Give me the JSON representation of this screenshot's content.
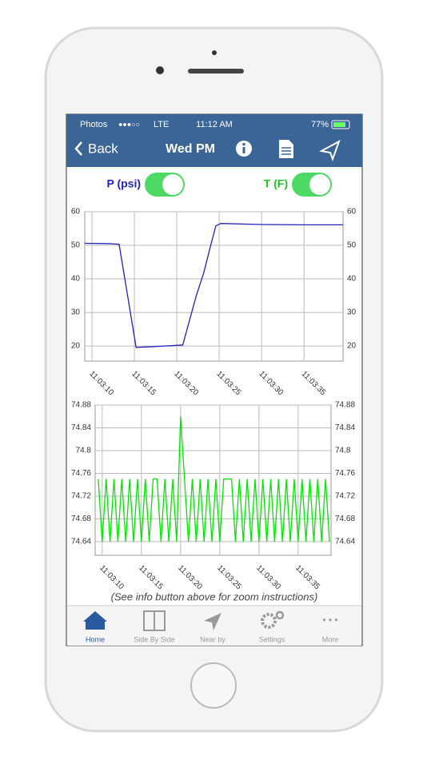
{
  "status_bar": {
    "back_app": "Photos",
    "signal": "●●●○○",
    "network": "LTE",
    "time": "11:12 AM",
    "battery": "77%"
  },
  "nav_bar": {
    "back": "Back",
    "title": "Wed PM"
  },
  "note": "(See info button above for zoom instructions)",
  "tabs": [
    "Home",
    "Side By Side",
    "Near by",
    "Settings",
    "More"
  ],
  "chart_data": [
    {
      "type": "line",
      "x": [
        9.15,
        12,
        13.2,
        14.2,
        15.2,
        17,
        18.5,
        20.7,
        22.3,
        23.2,
        24,
        24.6,
        25.2,
        30,
        35,
        39.6
      ],
      "series": [
        {
          "name": "P (psi)",
          "color": "#2222bb",
          "values": [
            50.6,
            50.5,
            50.3,
            35,
            19.6,
            19.8,
            20,
            20.3,
            35,
            42,
            50,
            55.8,
            56.5,
            56.2,
            56.1,
            56.1
          ]
        }
      ],
      "xlim": [
        9.15,
        39.6
      ],
      "ylim": [
        15.5,
        60
      ],
      "xticks": [
        {
          "value": 10,
          "label": "11:03:10"
        },
        {
          "value": 15,
          "label": "11:03:15"
        },
        {
          "value": 20,
          "label": "11:03:20"
        },
        {
          "value": 25,
          "label": "11:03:25"
        },
        {
          "value": 30,
          "label": "11:03:30"
        },
        {
          "value": 35,
          "label": "11:03:35"
        }
      ],
      "yticks": [
        20,
        30,
        40,
        50,
        60
      ],
      "grid": true
    },
    {
      "type": "line",
      "x": [
        9.5,
        10,
        10.5,
        11,
        11.5,
        12,
        12.5,
        13,
        13.5,
        14,
        14.5,
        15,
        15.5,
        16,
        16.5,
        17,
        17.5,
        18,
        18.5,
        19,
        19.5,
        20,
        20.5,
        21,
        21.5,
        22,
        22.5,
        23,
        23.5,
        24,
        24.5,
        25,
        25.5,
        26,
        26.5,
        27,
        27.5,
        28,
        28.5,
        29,
        29.5,
        30,
        30.5,
        31,
        31.5,
        32,
        32.5,
        33,
        33.5,
        34,
        34.5,
        35,
        35.5,
        36,
        36.5,
        37,
        37.5,
        38,
        38.5,
        39
      ],
      "series": [
        {
          "name": "T (F)",
          "color": "#00e600",
          "values": [
            74.75,
            74.64,
            74.75,
            74.64,
            74.75,
            74.64,
            74.75,
            74.64,
            74.75,
            74.64,
            74.75,
            74.64,
            74.75,
            74.64,
            74.75,
            74.75,
            74.64,
            74.75,
            74.64,
            74.75,
            74.64,
            74.86,
            74.75,
            74.64,
            74.75,
            74.64,
            74.75,
            74.64,
            74.75,
            74.64,
            74.75,
            74.64,
            74.75,
            74.75,
            74.75,
            74.64,
            74.75,
            74.64,
            74.75,
            74.64,
            74.75,
            74.64,
            74.75,
            74.64,
            74.75,
            74.64,
            74.75,
            74.64,
            74.75,
            74.64,
            74.75,
            74.64,
            74.75,
            74.64,
            74.75,
            74.64,
            74.75,
            74.64,
            74.75,
            74.64
          ]
        }
      ],
      "xlim": [
        9.1,
        39.2
      ],
      "ylim": [
        74.616,
        74.88
      ],
      "xticks": [
        {
          "value": 10,
          "label": "11:03:10"
        },
        {
          "value": 15,
          "label": "11:03:15"
        },
        {
          "value": 20,
          "label": "11:03:20"
        },
        {
          "value": 25,
          "label": "11:03:25"
        },
        {
          "value": 30,
          "label": "11:03:30"
        },
        {
          "value": 35,
          "label": "11:03:35"
        }
      ],
      "yticks": [
        74.64,
        74.68,
        74.72,
        74.76,
        74.8,
        74.84,
        74.88
      ],
      "grid": true
    }
  ]
}
